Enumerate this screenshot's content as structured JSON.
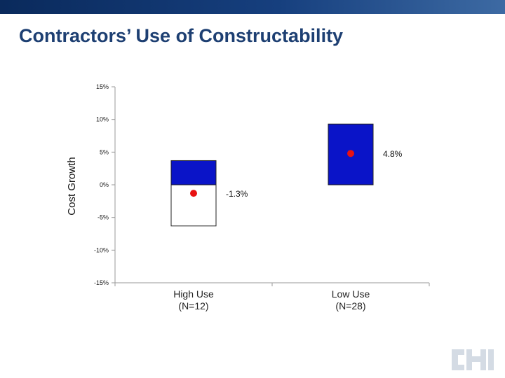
{
  "slide": {
    "title": "Contractors’ Use of Constructability"
  },
  "logo": {
    "name": "CII",
    "color": "#d4dbe4"
  },
  "colors": {
    "top_bar": "#0a2a5c",
    "title": "#1d3f72",
    "box_fill": "#0a14c8",
    "marker": "#e81212",
    "axis": "#9a9a9a"
  },
  "chart_data": {
    "type": "box",
    "ylabel": "Cost Growth",
    "ylim": [
      -15,
      15
    ],
    "y_ticks": [
      15,
      10,
      5,
      0,
      -5,
      -10,
      -15
    ],
    "y_tick_labels": [
      "15%",
      "10%",
      "5%",
      "0%",
      "-5%",
      "-10%",
      "-15%"
    ],
    "categories": [
      "High Use\n(N=12)",
      "Low Use\n(N=28)"
    ],
    "category_lines": [
      [
        "High Use",
        "(N=12)"
      ],
      [
        "Low Use",
        "(N=28)"
      ]
    ],
    "series": [
      {
        "name": "High Use (N=12)",
        "box_low": -6.3,
        "box_high": 3.7,
        "split": 0,
        "mean": -1.3,
        "label": "-1.3%"
      },
      {
        "name": "Low Use (N=28)",
        "box_low": 0,
        "box_high": 9.3,
        "split": 0,
        "mean": 4.8,
        "label": "4.8%"
      }
    ]
  }
}
